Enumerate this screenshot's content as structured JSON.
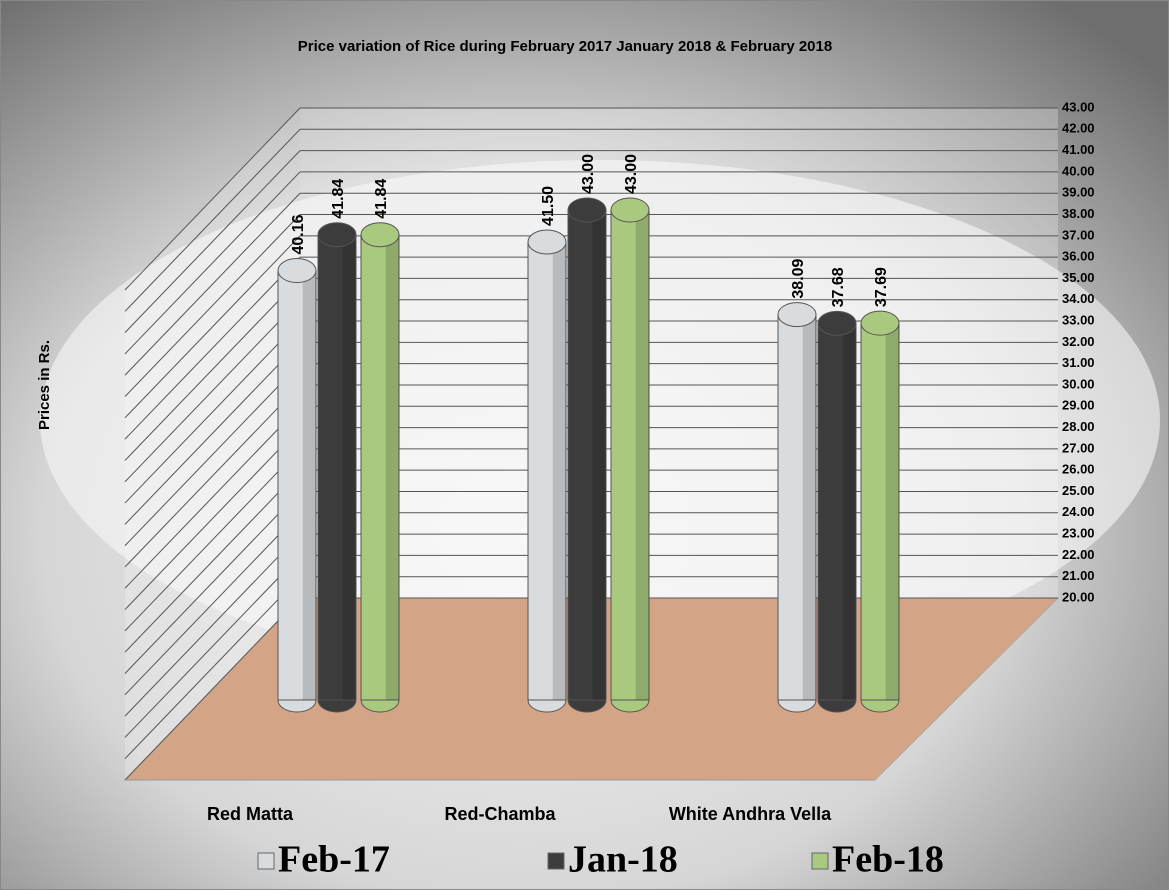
{
  "chart_data": {
    "type": "bar3d",
    "title": "Price variation of Rice during  February  2017  January  2018 &  February 2018",
    "y_label": "Prices in Rs.",
    "categories": [
      "Red Matta",
      "Red-Chamba",
      "White Andhra Vella"
    ],
    "series": [
      {
        "name": "Feb-17",
        "color": "#d9dcdf",
        "values": [
          40.16,
          41.5,
          38.09
        ],
        "value_labels": [
          "40.16",
          "41.50",
          "38.09"
        ]
      },
      {
        "name": "Jan-18",
        "color": "#3c3c3c",
        "values": [
          41.84,
          43,
          37.68
        ],
        "value_labels": [
          "41.84",
          "43.00",
          "37.68"
        ]
      },
      {
        "name": "Feb-18",
        "color": "#a9c97f",
        "values": [
          41.84,
          43,
          37.69
        ],
        "value_labels": [
          "41.84",
          "43.00",
          "37.69"
        ]
      }
    ],
    "ylim": [
      20,
      43
    ],
    "yticks": [
      {
        "value": 20,
        "label": "20.00"
      },
      {
        "value": 21,
        "label": "21.00"
      },
      {
        "value": 22,
        "label": "22.00"
      },
      {
        "value": 23,
        "label": "23.00"
      },
      {
        "value": 24,
        "label": "24.00"
      },
      {
        "value": 25,
        "label": "25.00"
      },
      {
        "value": 26,
        "label": "26.00"
      },
      {
        "value": 27,
        "label": "27.00"
      },
      {
        "value": 28,
        "label": "28.00"
      },
      {
        "value": 29,
        "label": "29.00"
      },
      {
        "value": 30,
        "label": "30.00"
      },
      {
        "value": 31,
        "label": "31.00"
      },
      {
        "value": 32,
        "label": "32.00"
      },
      {
        "value": 33,
        "label": "33.00"
      },
      {
        "value": 34,
        "label": "34.00"
      },
      {
        "value": 35,
        "label": "35.00"
      },
      {
        "value": 36,
        "label": "36.00"
      },
      {
        "value": 37,
        "label": "37.00"
      },
      {
        "value": 38,
        "label": "38.00"
      },
      {
        "value": 39,
        "label": "39.00"
      },
      {
        "value": 40,
        "label": "40.00"
      },
      {
        "value": 41,
        "label": "41.00"
      },
      {
        "value": 42,
        "label": "42.00"
      },
      {
        "value": 43,
        "label": "43.00"
      }
    ],
    "grid": true
  }
}
